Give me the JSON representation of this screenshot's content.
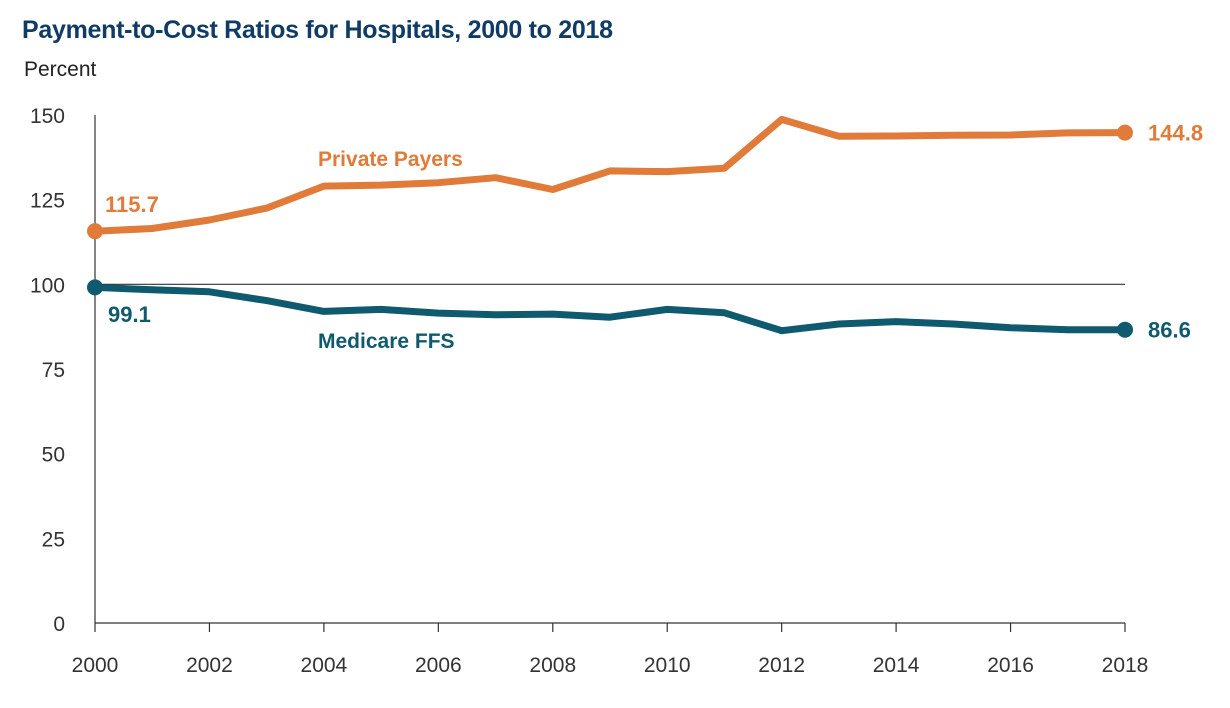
{
  "chart_data": {
    "type": "line",
    "title": "Payment-to-Cost Ratios for Hospitals, 2000 to 2018",
    "ylabel": "Percent",
    "xlabel": "",
    "ylim": [
      0,
      150
    ],
    "yticks": [
      0,
      25,
      50,
      75,
      100,
      125,
      150
    ],
    "xticks": [
      2000,
      2002,
      2004,
      2006,
      2008,
      2010,
      2012,
      2014,
      2016,
      2018
    ],
    "reference_line": 100,
    "x": [
      2000,
      2001,
      2002,
      2003,
      2004,
      2005,
      2006,
      2007,
      2008,
      2009,
      2010,
      2011,
      2012,
      2013,
      2014,
      2015,
      2016,
      2017,
      2018
    ],
    "series": [
      {
        "name": "Private Payers",
        "color": "#e07b39",
        "values": [
          115.7,
          116.5,
          119,
          122.5,
          129,
          129.3,
          130,
          131.5,
          128,
          133.5,
          133.3,
          134.3,
          148.7,
          143.7,
          143.8,
          144,
          144.1,
          144.7,
          144.8
        ],
        "start_label": "115.7",
        "end_label": "144.8"
      },
      {
        "name": "Medicare FFS",
        "color": "#0f5a6e",
        "values": [
          99.1,
          98.4,
          97.8,
          95.2,
          92,
          92.6,
          91.5,
          91,
          91.2,
          90.3,
          92.6,
          91.6,
          86.3,
          88.3,
          89,
          88.3,
          87.2,
          86.6,
          86.6
        ],
        "start_label": "99.1",
        "end_label": "86.6"
      }
    ]
  }
}
